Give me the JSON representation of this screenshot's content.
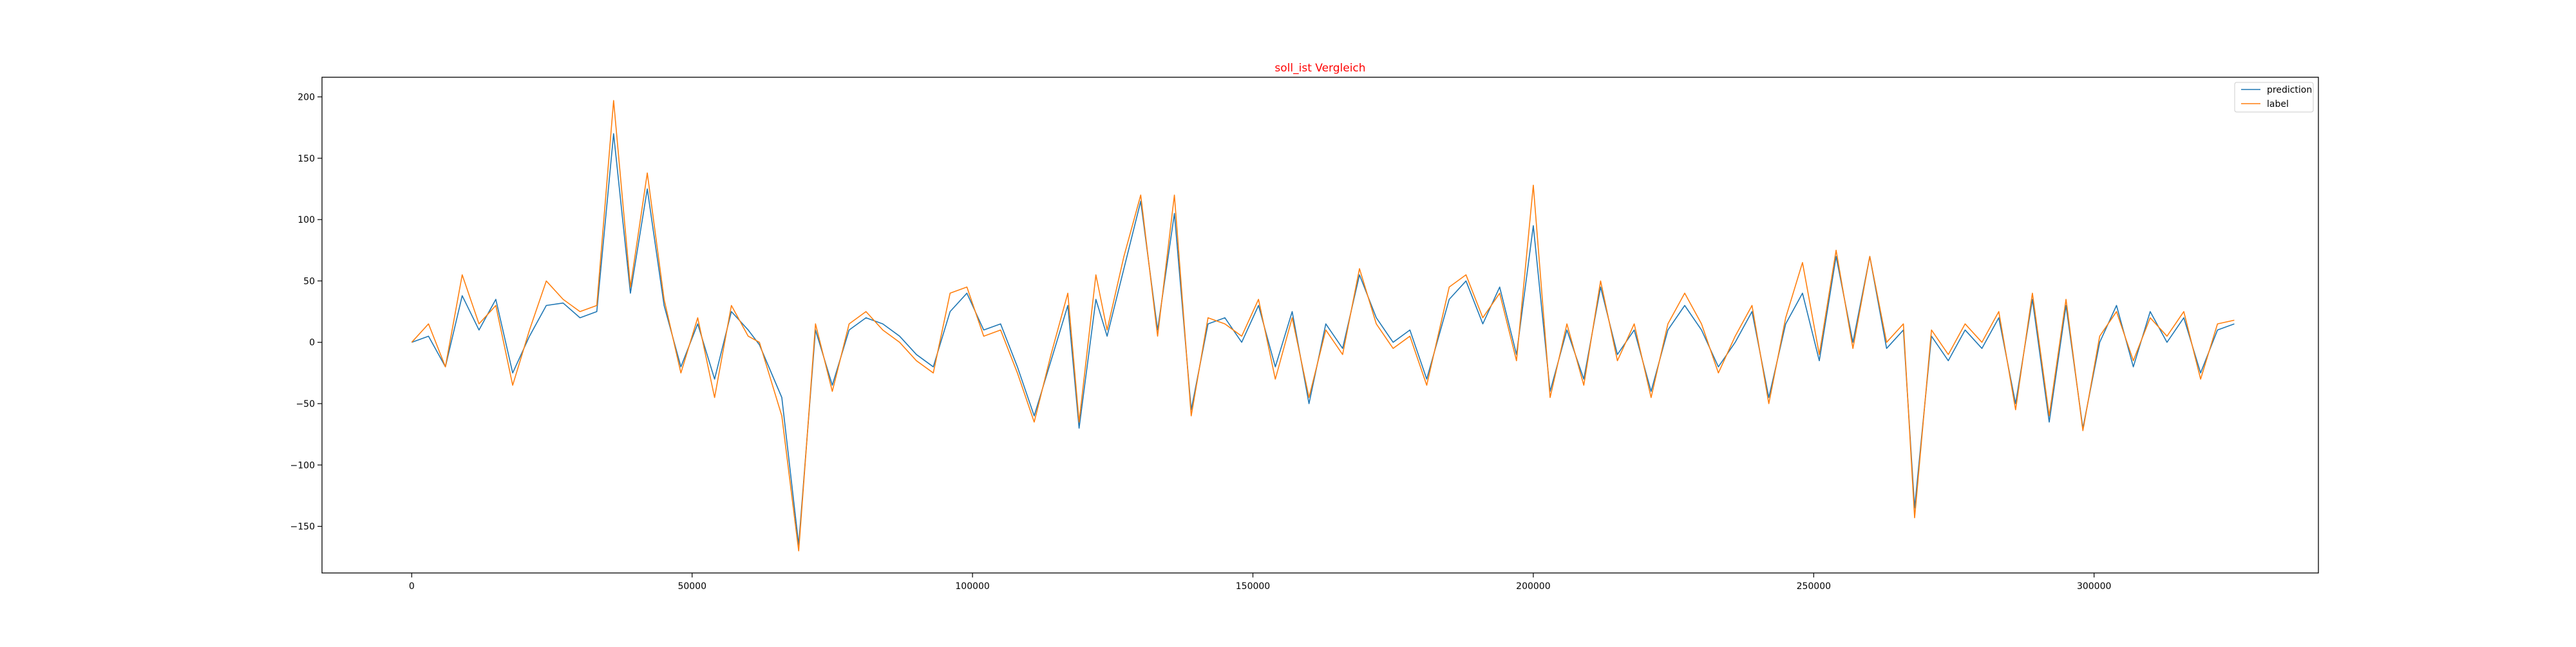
{
  "chart_data": {
    "type": "line",
    "title": "soll_ist Vergleich",
    "title_color": "#ff0000",
    "xlabel": "",
    "ylabel": "",
    "xlim": [
      -16000,
      340000
    ],
    "ylim": [
      -188,
      216
    ],
    "xticks": [
      0,
      50000,
      100000,
      150000,
      200000,
      250000,
      300000
    ],
    "xtick_labels": [
      "0",
      "50000",
      "100000",
      "150000",
      "200000",
      "250000",
      "300000"
    ],
    "yticks": [
      200,
      150,
      100,
      50,
      0,
      -50,
      -100,
      -150
    ],
    "ytick_labels": [
      "200",
      "150",
      "100",
      "50",
      "0",
      "−50",
      "−100",
      "−150"
    ],
    "grid": false,
    "legend_position": "top-right",
    "x": [
      0,
      3000,
      6000,
      9000,
      12000,
      15000,
      18000,
      21000,
      24000,
      27000,
      30000,
      33000,
      36000,
      39000,
      42000,
      45000,
      48000,
      51000,
      54000,
      57000,
      60000,
      62000,
      66000,
      69000,
      72000,
      75000,
      78000,
      81000,
      84000,
      87000,
      90000,
      93000,
      96000,
      99000,
      102000,
      105000,
      108000,
      111000,
      114000,
      117000,
      119000,
      122000,
      124000,
      127000,
      130000,
      133000,
      136000,
      139000,
      142000,
      145000,
      148000,
      151000,
      154000,
      157000,
      160000,
      163000,
      166000,
      169000,
      172000,
      175000,
      178000,
      181000,
      185000,
      188000,
      191000,
      194000,
      197000,
      200000,
      203000,
      206000,
      209000,
      212000,
      215000,
      218000,
      221000,
      224000,
      227000,
      230000,
      233000,
      236000,
      239000,
      242000,
      245000,
      248000,
      251000,
      254000,
      257000,
      260000,
      263000,
      266000,
      268000,
      271000,
      274000,
      277000,
      280000,
      283000,
      286000,
      289000,
      292000,
      295000,
      298000,
      301000,
      304000,
      307000,
      310000,
      313000,
      316000,
      319000,
      322000,
      325000
    ],
    "series": [
      {
        "name": "prediction",
        "color": "#1f77b4",
        "values": [
          0,
          5,
          -20,
          38,
          10,
          35,
          -25,
          5,
          30,
          32,
          20,
          25,
          170,
          40,
          125,
          30,
          -20,
          15,
          -30,
          25,
          10,
          -2,
          -45,
          -165,
          10,
          -35,
          10,
          20,
          15,
          5,
          -10,
          -20,
          25,
          40,
          10,
          15,
          -20,
          -60,
          -15,
          30,
          -70,
          35,
          5,
          60,
          115,
          10,
          105,
          -55,
          15,
          20,
          0,
          30,
          -20,
          25,
          -50,
          15,
          -5,
          55,
          20,
          0,
          10,
          -30,
          35,
          50,
          15,
          45,
          -10,
          95,
          -40,
          10,
          -30,
          45,
          -10,
          10,
          -40,
          10,
          30,
          10,
          -20,
          0,
          25,
          -45,
          15,
          40,
          -15,
          70,
          0,
          70,
          -5,
          10,
          -135,
          5,
          -15,
          10,
          -5,
          20,
          -50,
          35,
          -65,
          30,
          -70,
          0,
          30,
          -20,
          25,
          0,
          20,
          -25,
          10,
          15
        ]
      },
      {
        "name": "label",
        "color": "#ff7f0e",
        "values": [
          0,
          15,
          -20,
          55,
          15,
          30,
          -35,
          10,
          50,
          35,
          25,
          30,
          197,
          45,
          138,
          35,
          -25,
          20,
          -45,
          30,
          5,
          0,
          -60,
          -170,
          15,
          -40,
          15,
          25,
          10,
          0,
          -15,
          -25,
          40,
          45,
          5,
          10,
          -25,
          -65,
          -10,
          40,
          -65,
          55,
          10,
          70,
          120,
          5,
          120,
          -60,
          20,
          15,
          5,
          35,
          -30,
          20,
          -45,
          10,
          -10,
          60,
          15,
          -5,
          5,
          -35,
          45,
          55,
          20,
          40,
          -15,
          128,
          -45,
          15,
          -35,
          50,
          -15,
          15,
          -45,
          15,
          40,
          15,
          -25,
          5,
          30,
          -50,
          20,
          65,
          -10,
          75,
          -5,
          70,
          0,
          15,
          -143,
          10,
          -10,
          15,
          0,
          25,
          -55,
          40,
          -60,
          35,
          -72,
          5,
          25,
          -15,
          20,
          5,
          25,
          -30,
          15,
          18
        ]
      }
    ]
  }
}
